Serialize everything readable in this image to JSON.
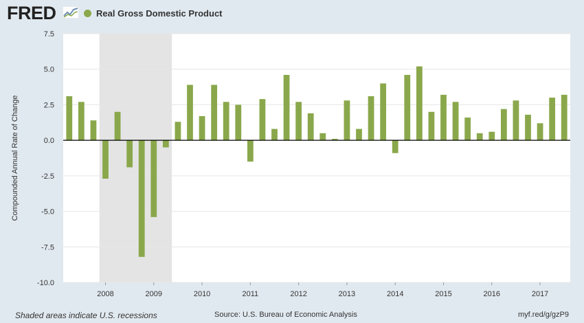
{
  "header": {
    "logo_text": "FRED",
    "series_label": "Real Gross Domestic Product",
    "series_color": "#8aa84b"
  },
  "footer": {
    "recession_note": "Shaded areas indicate U.S. recessions",
    "source": "Source: U.S. Bureau of Economic Analysis",
    "url": "myf.red/g/gzP9"
  },
  "chart_data": {
    "type": "bar",
    "title": "Real Gross Domestic Product",
    "xlabel": "",
    "ylabel": "Compounded Annual Rate of Change",
    "ylim": [
      -10.0,
      7.5
    ],
    "yticks": [
      "7.5",
      "5.0",
      "2.5",
      "0.0",
      "-2.5",
      "-5.0",
      "-7.5",
      "-10.0"
    ],
    "ytick_values": [
      7.5,
      5.0,
      2.5,
      0.0,
      -2.5,
      -5.0,
      -7.5,
      -10.0
    ],
    "grid": true,
    "bar_color": "#8aa84b",
    "recession_color": "#e4e4e4",
    "recession_span": [
      "2008Q1",
      "2009Q2"
    ],
    "x_tick_labels": [
      "2008",
      "2009",
      "2010",
      "2011",
      "2012",
      "2013",
      "2014",
      "2015",
      "2016",
      "2017"
    ],
    "categories": [
      "2007Q2",
      "2007Q3",
      "2007Q4",
      "2008Q1",
      "2008Q2",
      "2008Q3",
      "2008Q4",
      "2009Q1",
      "2009Q2",
      "2009Q3",
      "2009Q4",
      "2010Q1",
      "2010Q2",
      "2010Q3",
      "2010Q4",
      "2011Q1",
      "2011Q2",
      "2011Q3",
      "2011Q4",
      "2012Q1",
      "2012Q2",
      "2012Q3",
      "2012Q4",
      "2013Q1",
      "2013Q2",
      "2013Q3",
      "2013Q4",
      "2014Q1",
      "2014Q2",
      "2014Q3",
      "2014Q4",
      "2015Q1",
      "2015Q2",
      "2015Q3",
      "2015Q4",
      "2016Q1",
      "2016Q2",
      "2016Q3",
      "2016Q4",
      "2017Q1",
      "2017Q2",
      "2017Q3"
    ],
    "values": [
      3.1,
      2.7,
      1.4,
      -2.7,
      2.0,
      -1.9,
      -8.2,
      -5.4,
      -0.5,
      1.3,
      3.9,
      1.7,
      3.9,
      2.7,
      2.5,
      -1.5,
      2.9,
      0.8,
      4.6,
      2.7,
      1.9,
      0.5,
      0.1,
      2.8,
      0.8,
      3.1,
      4.0,
      -0.9,
      4.6,
      5.2,
      2.0,
      3.2,
      2.7,
      1.6,
      0.5,
      0.6,
      2.2,
      2.8,
      1.8,
      1.2,
      3.0,
      3.2
    ]
  }
}
